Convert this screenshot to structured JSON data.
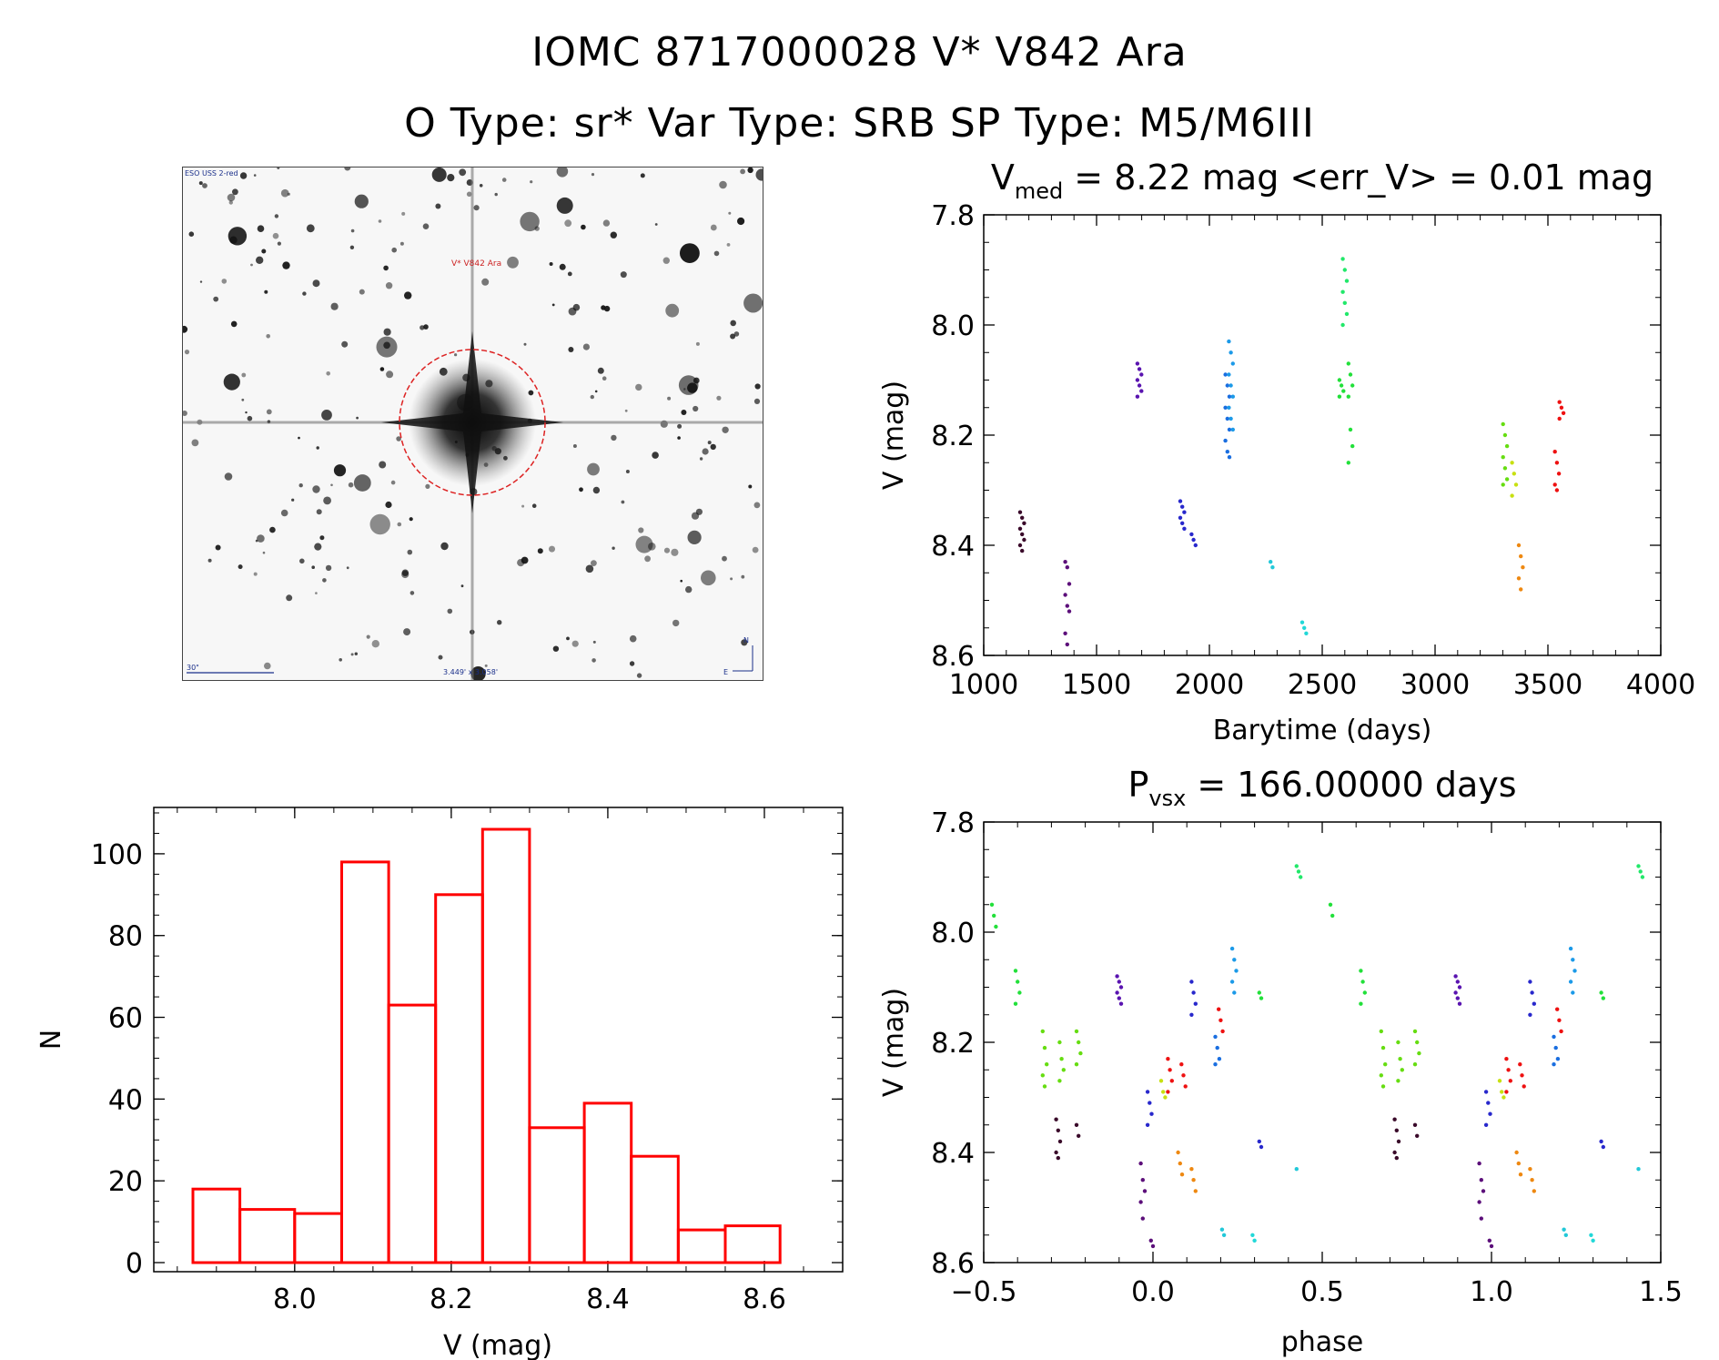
{
  "title": "IOMC 8717000028    V* V842 Ara",
  "subtitle": "O Type: sr*   Var Type: SRB   SP Type: M5/M6III",
  "image_panel": {
    "survey_label": "ESO USS 2-red",
    "target_label": "V* V842 Ara",
    "scale_label": "30\"",
    "size_label": "3.449' x 3.058'",
    "north_label": "N",
    "east_label": "E"
  },
  "colors": {
    "hist": "#ff0000",
    "circle": "#dd2222",
    "annotation": "#1a2f8a"
  },
  "chart_data": [
    {
      "id": "lightcurve",
      "type": "scatter",
      "title_parts": {
        "v": "V",
        "sub": "med",
        "rest": " = 8.22 mag <err_V> = 0.01 mag"
      },
      "xlabel": "Barytime (days)",
      "ylabel": "V (mag)",
      "xlim": [
        1000,
        4000
      ],
      "ylim": [
        8.6,
        7.8
      ],
      "y_inverted": true,
      "xticks": [
        "1000",
        "1500",
        "2000",
        "2500",
        "3000",
        "3500",
        "4000"
      ],
      "yticks": [
        "7.8",
        "8.0",
        "8.2",
        "8.4",
        "8.6"
      ],
      "series": [
        {
          "color": "#3a0a2a",
          "x": 1170,
          "y": [
            8.34,
            8.35,
            8.36,
            8.37,
            8.38,
            8.39,
            8.4,
            8.41
          ]
        },
        {
          "color": "#5c0f7a",
          "x": 1370,
          "y": [
            8.43,
            8.44,
            8.47,
            8.49,
            8.51,
            8.52,
            8.56,
            8.58
          ]
        },
        {
          "color": "#5a14b0",
          "x": 1690,
          "y": [
            8.07,
            8.08,
            8.09,
            8.1,
            8.11,
            8.12,
            8.13
          ]
        },
        {
          "color": "#2828cc",
          "x": 1880,
          "y": [
            8.32,
            8.33,
            8.34,
            8.35,
            8.36,
            8.37
          ]
        },
        {
          "color": "#2828cc",
          "x": 1930,
          "y": [
            8.38,
            8.39,
            8.4
          ]
        },
        {
          "color": "#1a6ee0",
          "x": 2080,
          "y": [
            8.09,
            8.11,
            8.13,
            8.15,
            8.17,
            8.19,
            8.21,
            8.23,
            8.24
          ]
        },
        {
          "color": "#1c9ae8",
          "x": 2095,
          "y": [
            8.03,
            8.05,
            8.07,
            8.09,
            8.11,
            8.13,
            8.15,
            8.17,
            8.19
          ]
        },
        {
          "color": "#22c8d8",
          "x": 2280,
          "y": [
            8.43,
            8.44
          ]
        },
        {
          "color": "#22d8d8",
          "x": 2420,
          "y": [
            8.54,
            8.55,
            8.56
          ]
        },
        {
          "color": "#22e86a",
          "x": 2600,
          "y": [
            7.88,
            7.9,
            7.92,
            7.94,
            7.96,
            7.98,
            8.0
          ]
        },
        {
          "color": "#22e03a",
          "x": 2585,
          "y": [
            8.1,
            8.11,
            8.12,
            8.13
          ]
        },
        {
          "color": "#22e03a",
          "x": 2625,
          "y": [
            8.07,
            8.09,
            8.11,
            8.13,
            8.19,
            8.22,
            8.25
          ]
        },
        {
          "color": "#66dd11",
          "x": 3310,
          "y": [
            8.18,
            8.2,
            8.22,
            8.24,
            8.26,
            8.28,
            8.29
          ]
        },
        {
          "color": "#c8e011",
          "x": 3350,
          "y": [
            8.25,
            8.27,
            8.29,
            8.31
          ]
        },
        {
          "color": "#ee8811",
          "x": 3380,
          "y": [
            8.4,
            8.42,
            8.44,
            8.46,
            8.48
          ]
        },
        {
          "color": "#ee1111",
          "x": 3540,
          "y": [
            8.23,
            8.25,
            8.27,
            8.29,
            8.3
          ]
        },
        {
          "color": "#ee1111",
          "x": 3560,
          "y": [
            8.14,
            8.15,
            8.16,
            8.17
          ]
        }
      ]
    },
    {
      "id": "histogram",
      "type": "bar",
      "xlabel": "V (mag)",
      "ylabel": "N",
      "xlim": [
        7.82,
        8.7
      ],
      "ylim": [
        0,
        110
      ],
      "xticks": [
        "8.0",
        "8.2",
        "8.4",
        "8.6"
      ],
      "yticks": [
        "0",
        "20",
        "40",
        "60",
        "80",
        "100"
      ],
      "bin_edges": [
        7.87,
        7.93,
        8.0,
        8.06,
        8.12,
        8.18,
        8.24,
        8.3,
        8.37,
        8.43,
        8.49,
        8.55,
        8.62
      ],
      "values": [
        18,
        13,
        12,
        98,
        63,
        90,
        106,
        33,
        39,
        26,
        8,
        9
      ]
    },
    {
      "id": "phased",
      "type": "scatter",
      "title_parts": {
        "v": "P",
        "sub": "vsx",
        "rest": " = 166.00000 days"
      },
      "xlabel": "phase",
      "ylabel": "V (mag)",
      "xlim": [
        -0.5,
        1.5
      ],
      "ylim": [
        8.6,
        7.8
      ],
      "y_inverted": true,
      "xticks": [
        "−0.5",
        "0.0",
        "0.5",
        "1.0",
        "1.5"
      ],
      "yticks": [
        "7.8",
        "8.0",
        "8.2",
        "8.4",
        "8.6"
      ],
      "series": [
        {
          "color": "#22e03a",
          "x": -0.47,
          "y": [
            7.95,
            7.97,
            7.99
          ]
        },
        {
          "color": "#22e03a",
          "x": -0.4,
          "y": [
            8.07,
            8.09,
            8.11,
            8.13
          ]
        },
        {
          "color": "#66dd11",
          "x": -0.32,
          "y": [
            8.18,
            8.21,
            8.24,
            8.26,
            8.28
          ]
        },
        {
          "color": "#66dd11",
          "x": -0.27,
          "y": [
            8.2,
            8.23,
            8.25,
            8.27
          ]
        },
        {
          "color": "#66dd11",
          "x": -0.22,
          "y": [
            8.18,
            8.2,
            8.22,
            8.24
          ]
        },
        {
          "color": "#3a0a2a",
          "x": -0.28,
          "y": [
            8.34,
            8.36,
            8.38,
            8.4,
            8.41
          ]
        },
        {
          "color": "#3a0a2a",
          "x": -0.22,
          "y": [
            8.35,
            8.37
          ]
        },
        {
          "color": "#5a14b0",
          "x": -0.1,
          "y": [
            8.08,
            8.09,
            8.1,
            8.11,
            8.12,
            8.13
          ]
        },
        {
          "color": "#5c0f7a",
          "x": -0.03,
          "y": [
            8.42,
            8.45,
            8.47,
            8.49,
            8.52
          ]
        },
        {
          "color": "#5c0f7a",
          "x": 0.0,
          "y": [
            8.56,
            8.57
          ]
        },
        {
          "color": "#2828cc",
          "x": -0.01,
          "y": [
            8.29,
            8.31,
            8.33,
            8.35
          ]
        },
        {
          "color": "#2828cc",
          "x": 0.12,
          "y": [
            8.09,
            8.11,
            8.13,
            8.15
          ]
        },
        {
          "color": "#c8e011",
          "x": 0.03,
          "y": [
            8.27,
            8.29,
            8.3
          ]
        },
        {
          "color": "#ee1111",
          "x": 0.05,
          "y": [
            8.23,
            8.25,
            8.27,
            8.29
          ]
        },
        {
          "color": "#ee1111",
          "x": 0.09,
          "y": [
            8.24,
            8.26,
            8.28
          ]
        },
        {
          "color": "#ee1111",
          "x": 0.2,
          "y": [
            8.14,
            8.16,
            8.18
          ]
        },
        {
          "color": "#ee8811",
          "x": 0.08,
          "y": [
            8.4,
            8.42,
            8.44
          ]
        },
        {
          "color": "#ee8811",
          "x": 0.12,
          "y": [
            8.43,
            8.45,
            8.47
          ]
        },
        {
          "color": "#1a6ee0",
          "x": 0.19,
          "y": [
            8.19,
            8.21,
            8.23,
            8.24
          ]
        },
        {
          "color": "#1c9ae8",
          "x": 0.24,
          "y": [
            8.03,
            8.05,
            8.07,
            8.09,
            8.11
          ]
        },
        {
          "color": "#2828cc",
          "x": 0.32,
          "y": [
            8.38,
            8.39
          ]
        },
        {
          "color": "#22c8d8",
          "x": 0.21,
          "y": [
            8.54,
            8.55
          ]
        },
        {
          "color": "#22d8d8",
          "x": 0.3,
          "y": [
            8.55,
            8.56
          ]
        },
        {
          "color": "#22e86a",
          "x": 0.43,
          "y": [
            7.88,
            7.89,
            7.9
          ]
        },
        {
          "color": "#22c8d8",
          "x": 0.43,
          "y": [
            8.43
          ]
        },
        {
          "color": "#22e03a",
          "x": 0.32,
          "y": [
            8.11,
            8.12
          ]
        },
        {
          "color": "#22e03a",
          "x": 0.53,
          "y": [
            7.95,
            7.97
          ]
        },
        {
          "color": "#22e03a",
          "x": 0.62,
          "y": [
            8.07,
            8.09,
            8.11,
            8.13
          ]
        },
        {
          "color": "#66dd11",
          "x": 0.68,
          "y": [
            8.18,
            8.21,
            8.24,
            8.26,
            8.28
          ]
        },
        {
          "color": "#66dd11",
          "x": 0.73,
          "y": [
            8.2,
            8.23,
            8.25,
            8.27
          ]
        },
        {
          "color": "#66dd11",
          "x": 0.78,
          "y": [
            8.18,
            8.2,
            8.22,
            8.24
          ]
        },
        {
          "color": "#3a0a2a",
          "x": 0.72,
          "y": [
            8.34,
            8.36,
            8.38,
            8.4,
            8.41
          ]
        },
        {
          "color": "#3a0a2a",
          "x": 0.78,
          "y": [
            8.35,
            8.37
          ]
        },
        {
          "color": "#5a14b0",
          "x": 0.9,
          "y": [
            8.08,
            8.09,
            8.1,
            8.11,
            8.12,
            8.13
          ]
        },
        {
          "color": "#5c0f7a",
          "x": 0.97,
          "y": [
            8.42,
            8.45,
            8.47,
            8.49,
            8.52
          ]
        },
        {
          "color": "#5c0f7a",
          "x": 1.0,
          "y": [
            8.56,
            8.57
          ]
        },
        {
          "color": "#2828cc",
          "x": 0.99,
          "y": [
            8.29,
            8.31,
            8.33,
            8.35
          ]
        },
        {
          "color": "#2828cc",
          "x": 1.12,
          "y": [
            8.09,
            8.11,
            8.13,
            8.15
          ]
        },
        {
          "color": "#c8e011",
          "x": 1.03,
          "y": [
            8.27,
            8.29,
            8.3
          ]
        },
        {
          "color": "#ee1111",
          "x": 1.05,
          "y": [
            8.23,
            8.25,
            8.27,
            8.29
          ]
        },
        {
          "color": "#ee1111",
          "x": 1.09,
          "y": [
            8.24,
            8.26,
            8.28
          ]
        },
        {
          "color": "#ee1111",
          "x": 1.2,
          "y": [
            8.14,
            8.16,
            8.18
          ]
        },
        {
          "color": "#ee8811",
          "x": 1.08,
          "y": [
            8.4,
            8.42,
            8.44
          ]
        },
        {
          "color": "#ee8811",
          "x": 1.12,
          "y": [
            8.43,
            8.45,
            8.47
          ]
        },
        {
          "color": "#1a6ee0",
          "x": 1.19,
          "y": [
            8.19,
            8.21,
            8.23,
            8.24
          ]
        },
        {
          "color": "#1c9ae8",
          "x": 1.24,
          "y": [
            8.03,
            8.05,
            8.07,
            8.09,
            8.11
          ]
        },
        {
          "color": "#2828cc",
          "x": 1.33,
          "y": [
            8.38,
            8.39
          ]
        },
        {
          "color": "#22c8d8",
          "x": 1.22,
          "y": [
            8.54,
            8.55
          ]
        },
        {
          "color": "#22d8d8",
          "x": 1.3,
          "y": [
            8.55,
            8.56
          ]
        },
        {
          "color": "#22e03a",
          "x": 1.33,
          "y": [
            8.11,
            8.12
          ]
        },
        {
          "color": "#22e86a",
          "x": 1.44,
          "y": [
            7.88,
            7.89,
            7.9
          ]
        },
        {
          "color": "#22c8d8",
          "x": 1.44,
          "y": [
            8.43
          ]
        }
      ]
    }
  ]
}
